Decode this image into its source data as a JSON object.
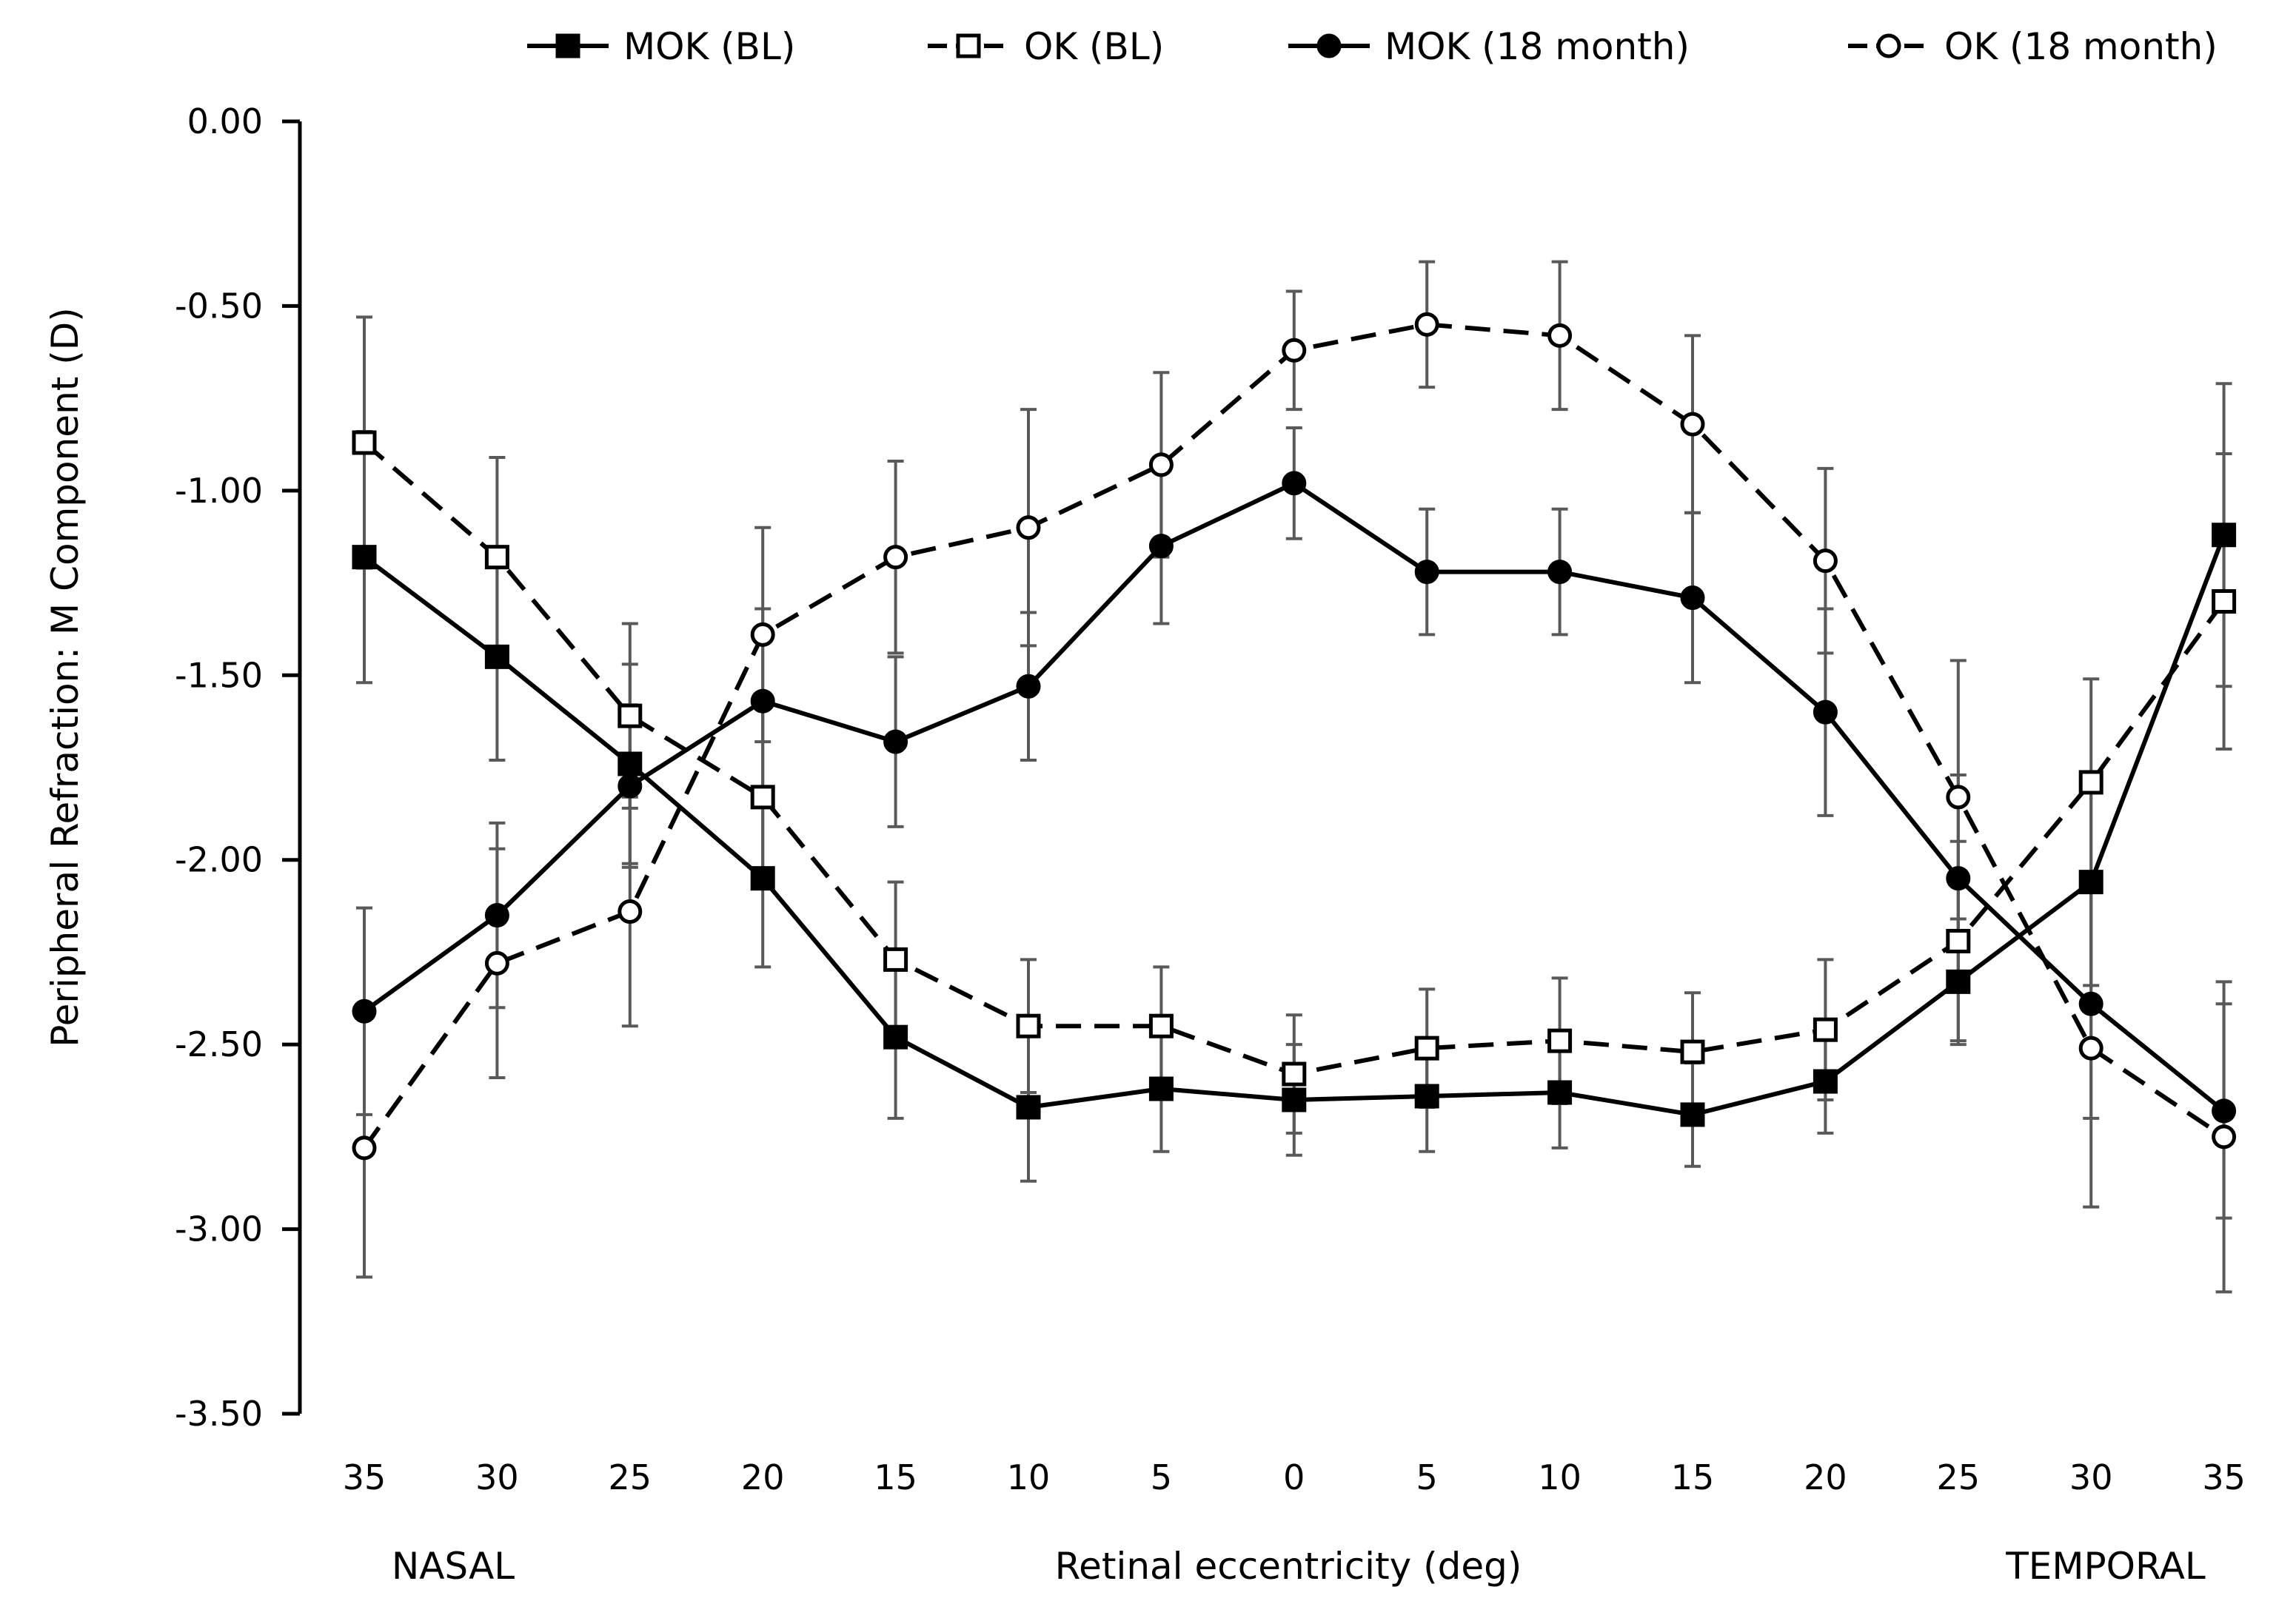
{
  "chart_data": {
    "type": "line",
    "ylabel": "Peripheral Refraction: M  Component (D)",
    "xlabel": "Retinal eccentricity (deg)",
    "side_labels": {
      "left": "NASAL",
      "right": "TEMPORAL"
    },
    "ylim": [
      -3.5,
      0
    ],
    "yticks": [
      "0.00",
      "-0.50",
      "-1.00",
      "-1.50",
      "-2.00",
      "-2.50",
      "-3.00",
      "-3.50"
    ],
    "categories": [
      "35",
      "30",
      "25",
      "20",
      "15",
      "10",
      "5",
      "0",
      "5",
      "10",
      "15",
      "20",
      "25",
      "30",
      "35"
    ],
    "legend_position": "top",
    "grid": false,
    "series": [
      {
        "name": "MOK (BL)",
        "line": "solid",
        "marker": "square-filled",
        "values": [
          -1.18,
          -1.45,
          -1.74,
          -2.05,
          -2.48,
          -2.67,
          -2.62,
          -2.65,
          -2.64,
          -2.63,
          -2.69,
          -2.6,
          -2.33,
          -2.06,
          -1.12
        ],
        "errors": [
          0.34,
          0.28,
          0.27,
          0.24,
          0.22,
          0.2,
          0.17,
          0.15,
          0.15,
          0.15,
          0.14,
          0.14,
          0.17,
          0.28,
          0.41
        ]
      },
      {
        "name": "OK (BL)",
        "line": "dashed",
        "marker": "square-open",
        "values": [
          -0.87,
          -1.18,
          -1.61,
          -1.83,
          -2.27,
          -2.45,
          -2.45,
          -2.58,
          -2.51,
          -2.49,
          -2.52,
          -2.46,
          -2.22,
          -1.79,
          -1.3
        ],
        "errors": [
          0.34,
          0.27,
          0.25,
          0.24,
          0.21,
          0.18,
          0.16,
          0.16,
          0.16,
          0.17,
          0.16,
          0.19,
          0.27,
          0.28,
          0.4
        ]
      },
      {
        "name": "MOK (18 month)",
        "line": "solid",
        "marker": "circle-filled",
        "values": [
          -2.41,
          -2.15,
          -1.8,
          -1.57,
          -1.68,
          -1.53,
          -1.15,
          -0.98,
          -1.22,
          -1.22,
          -1.29,
          -1.6,
          -2.05,
          -2.39,
          -2.68
        ],
        "errors": [
          0.28,
          0.25,
          0.22,
          0.25,
          0.23,
          0.2,
          0.21,
          0.15,
          0.17,
          0.17,
          0.23,
          0.28,
          0.28,
          0.31,
          0.29
        ]
      },
      {
        "name": "OK (18 month)",
        "line": "dashed",
        "marker": "circle-open",
        "values": [
          -2.78,
          -2.28,
          -2.14,
          -1.39,
          -1.18,
          -1.1,
          -0.93,
          -0.62,
          -0.55,
          -0.58,
          -0.82,
          -1.19,
          -1.83,
          -2.51,
          -2.75
        ],
        "errors": [
          0.35,
          0.31,
          0.31,
          0.29,
          0.26,
          0.32,
          0.25,
          0.16,
          0.17,
          0.2,
          0.24,
          0.25,
          0.37,
          0.43,
          0.42
        ]
      }
    ]
  }
}
